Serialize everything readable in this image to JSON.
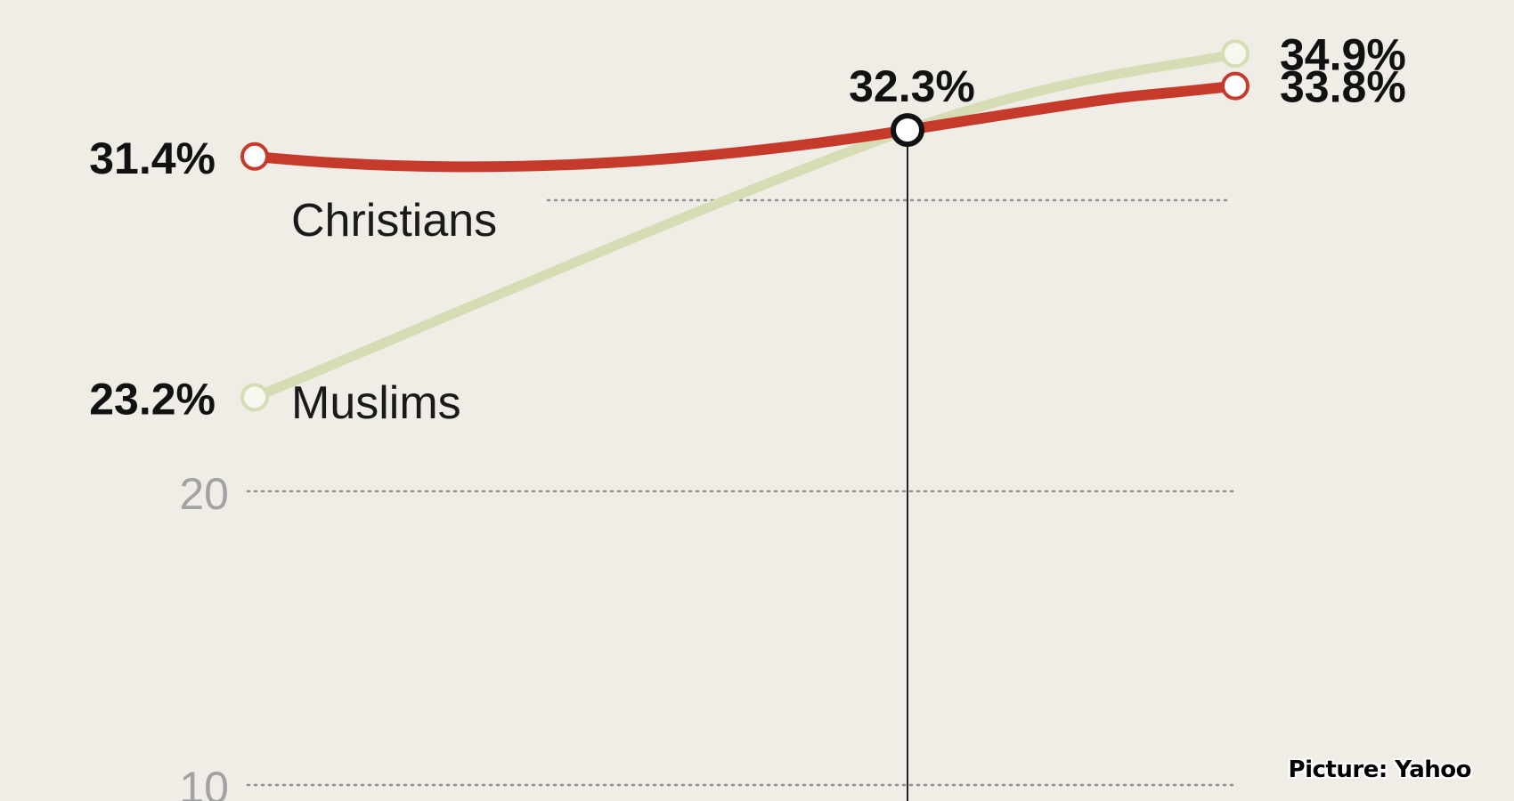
{
  "chart_data": {
    "type": "line",
    "x": [
      0,
      1,
      2
    ],
    "ylim": [
      10,
      36.2
    ],
    "y_ticks": [
      {
        "value": 10,
        "label": "10"
      },
      {
        "value": 20,
        "label": "20"
      }
    ],
    "grid": "dotted horizontal",
    "series": [
      {
        "name": "Muslims",
        "color": "#d6ddb4",
        "values": [
          23.2,
          32.3,
          34.9
        ],
        "point_labels": [
          "23.2%",
          "32.3%",
          "34.9%"
        ]
      },
      {
        "name": "Christians",
        "color": "#c63a2c",
        "values": [
          31.4,
          32.3,
          33.8
        ],
        "point_labels": [
          "31.4%",
          "32.3%",
          "33.8%"
        ]
      }
    ],
    "annotations": [
      {
        "text": "32.3%",
        "x": 1,
        "y": 32.3,
        "type": "crossover-marker-with-vertical-line"
      }
    ]
  },
  "credit": "Picture: Yahoo"
}
